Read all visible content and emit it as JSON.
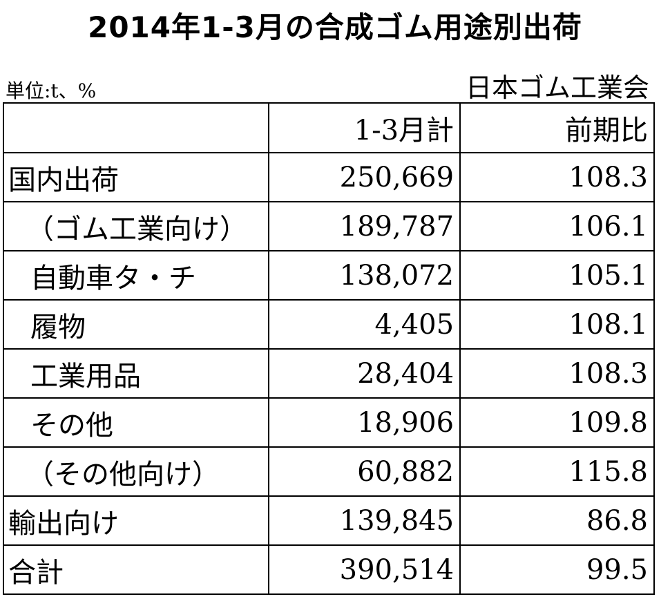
{
  "title": "2014年1-3月の合成ゴム用途別出荷",
  "unit_note": "単位:t、%",
  "source": "日本ゴム工業会",
  "table": {
    "headers": [
      "",
      "1-3月計",
      "前期比"
    ],
    "rows": [
      {
        "label": "国内出荷",
        "total": "250,669",
        "ratio": "108.3"
      },
      {
        "label": "（ゴム工業向け）",
        "total": "189,787",
        "ratio": "106.1"
      },
      {
        "label": "自動車タ・チ",
        "total": "138,072",
        "ratio": "105.1"
      },
      {
        "label": "履物",
        "total": "4,405",
        "ratio": "108.1"
      },
      {
        "label": "工業用品",
        "total": "28,404",
        "ratio": "108.3"
      },
      {
        "label": "その他",
        "total": "18,906",
        "ratio": "109.8"
      },
      {
        "label": "（その他向け）",
        "total": "60,882",
        "ratio": "115.8"
      },
      {
        "label": "輸出向け",
        "total": "139,845",
        "ratio": "86.8"
      },
      {
        "label": "合計",
        "total": "390,514",
        "ratio": "99.5"
      }
    ]
  }
}
